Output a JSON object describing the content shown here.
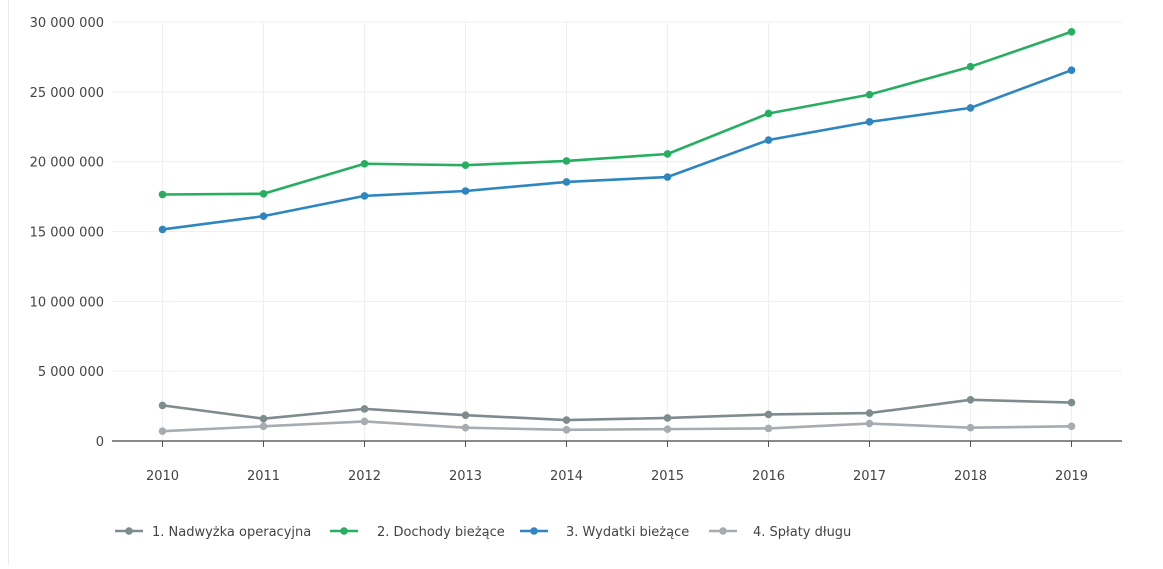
{
  "chart_data": {
    "type": "line",
    "title": "",
    "xlabel": "",
    "ylabel": "",
    "categories": [
      "2010",
      "2011",
      "2012",
      "2013",
      "2014",
      "2015",
      "2016",
      "2017",
      "2018",
      "2019"
    ],
    "ylim": [
      0,
      30000000
    ],
    "y_ticks": [
      {
        "value": 0,
        "label": "0"
      },
      {
        "value": 5000000,
        "label": "5 000 000"
      },
      {
        "value": 10000000,
        "label": "10 000 000"
      },
      {
        "value": 15000000,
        "label": "15 000 000"
      },
      {
        "value": 20000000,
        "label": "20 000 000"
      },
      {
        "value": 25000000,
        "label": "25 000 000"
      },
      {
        "value": 30000000,
        "label": "30 000 000"
      }
    ],
    "grid": true,
    "legend_position": "bottom-left",
    "series": [
      {
        "name": "1. Nadwyżka operacyjna",
        "color": "#7f8c8d",
        "values": [
          2550000,
          1600000,
          2300000,
          1850000,
          1500000,
          1650000,
          1900000,
          2000000,
          2950000,
          2750000
        ]
      },
      {
        "name": "2. Dochody bieżące",
        "color": "#27ae60",
        "values": [
          17650000,
          17700000,
          19850000,
          19750000,
          20050000,
          20550000,
          23450000,
          24800000,
          26800000,
          29300000
        ]
      },
      {
        "name": "3. Wydatki bieżące",
        "color": "#2e86c1",
        "values": [
          15150000,
          16100000,
          17550000,
          17900000,
          18550000,
          18900000,
          21550000,
          22850000,
          23850000,
          26550000
        ]
      },
      {
        "name": "4. Spłaty długu",
        "color": "#a6acaf",
        "values": [
          700000,
          1050000,
          1400000,
          950000,
          800000,
          850000,
          900000,
          1250000,
          950000,
          1050000
        ]
      }
    ]
  }
}
